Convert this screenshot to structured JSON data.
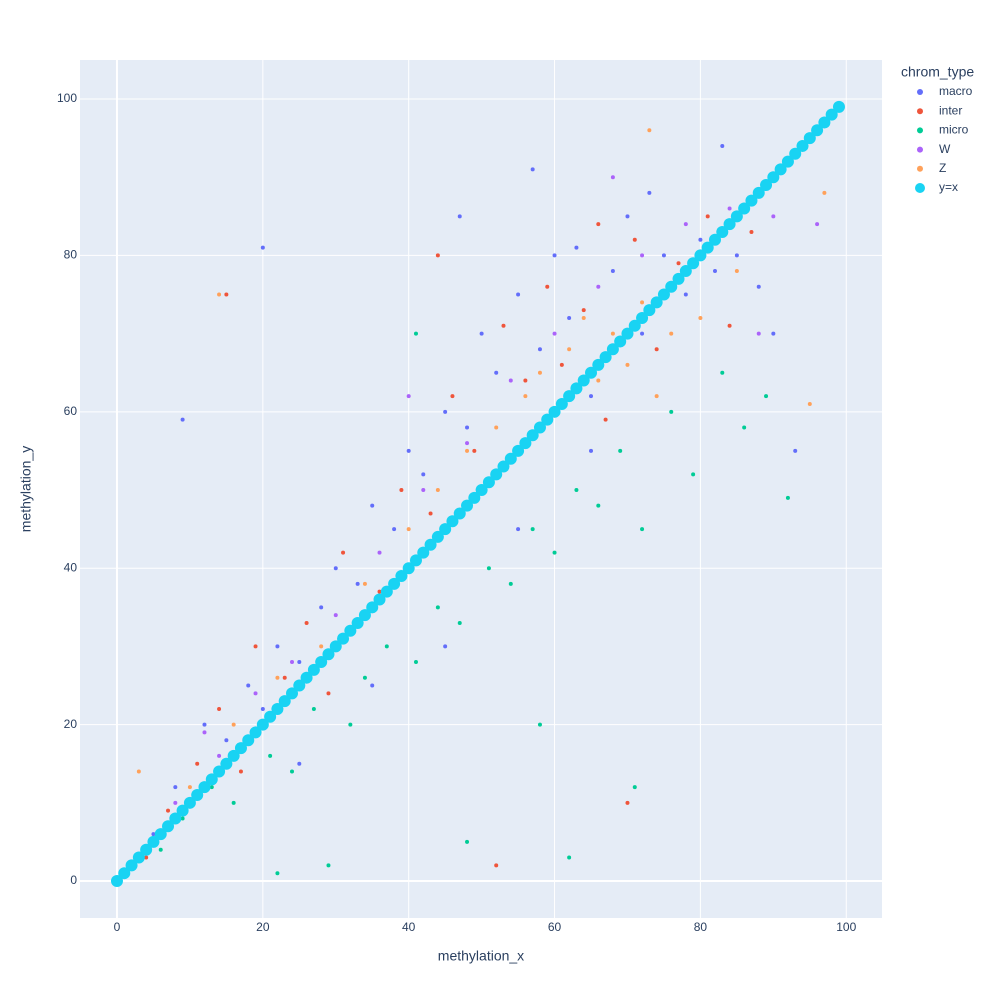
{
  "chart_data": {
    "type": "scatter",
    "x_label": "methylation_x",
    "y_label": "methylation_y",
    "legend_title": "chrom_type",
    "xlim": [
      -5.07,
      104.9
    ],
    "ylim": [
      -4.73,
      104.99
    ],
    "xticks": [
      0,
      20,
      40,
      60,
      80,
      100
    ],
    "yticks": [
      0,
      20,
      40,
      60,
      80,
      100
    ],
    "grid": true,
    "legend": "right",
    "series": [
      {
        "name": "macro",
        "color": "#636efa",
        "size": 2,
        "x": [
          5,
          8,
          10,
          12,
          15,
          18,
          20,
          22,
          25,
          28,
          30,
          33,
          35,
          38,
          40,
          42,
          45,
          48,
          50,
          52,
          55,
          58,
          60,
          62,
          65,
          68,
          70,
          72,
          75,
          78,
          80,
          82,
          85,
          88,
          90,
          45,
          55,
          65,
          35,
          25,
          20,
          9,
          47,
          57,
          63,
          73,
          83,
          93
        ],
        "values": [
          6,
          12,
          10,
          20,
          18,
          25,
          22,
          30,
          28,
          35,
          40,
          38,
          48,
          45,
          55,
          52,
          60,
          58,
          70,
          65,
          75,
          68,
          80,
          72,
          62,
          78,
          85,
          70,
          80,
          75,
          82,
          78,
          80,
          76,
          70,
          30,
          45,
          55,
          25,
          15,
          81,
          59,
          85,
          91,
          81,
          88,
          94,
          55
        ]
      },
      {
        "name": "inter",
        "color": "#EF553B",
        "size": 2,
        "x": [
          4,
          7,
          11,
          14,
          17,
          19,
          23,
          26,
          29,
          31,
          36,
          39,
          43,
          46,
          49,
          53,
          56,
          59,
          61,
          64,
          67,
          71,
          74,
          77,
          81,
          84,
          87,
          15,
          52,
          70,
          66,
          44
        ],
        "values": [
          3,
          9,
          15,
          22,
          14,
          30,
          26,
          33,
          24,
          42,
          37,
          50,
          47,
          62,
          55,
          71,
          64,
          76,
          66,
          73,
          59,
          82,
          68,
          79,
          85,
          71,
          83,
          75,
          2,
          10,
          84,
          80
        ]
      },
      {
        "name": "micro",
        "color": "#00cc96",
        "size": 2,
        "x": [
          6,
          9,
          13,
          16,
          21,
          24,
          27,
          32,
          34,
          37,
          41,
          44,
          47,
          51,
          54,
          57,
          60,
          63,
          66,
          69,
          72,
          76,
          79,
          83,
          86,
          89,
          22,
          29,
          48,
          62,
          71,
          58,
          41,
          92
        ],
        "values": [
          4,
          8,
          12,
          10,
          16,
          14,
          22,
          20,
          26,
          30,
          28,
          35,
          33,
          40,
          38,
          45,
          42,
          50,
          48,
          55,
          45,
          60,
          52,
          65,
          58,
          62,
          1,
          2,
          5,
          3,
          12,
          20,
          70,
          49
        ]
      },
      {
        "name": "W",
        "color": "#ab63fa",
        "size": 2,
        "x": [
          8,
          14,
          19,
          24,
          30,
          36,
          42,
          48,
          54,
          60,
          66,
          72,
          78,
          84,
          90,
          96,
          12,
          40,
          68,
          88
        ],
        "values": [
          10,
          16,
          24,
          28,
          34,
          42,
          50,
          56,
          64,
          70,
          76,
          80,
          84,
          86,
          85,
          84,
          19,
          62,
          90,
          70
        ]
      },
      {
        "name": "Z",
        "color": "#FFA15A",
        "size": 2,
        "x": [
          3,
          10,
          16,
          22,
          28,
          34,
          40,
          44,
          48,
          52,
          56,
          58,
          60,
          62,
          64,
          66,
          68,
          70,
          72,
          74,
          76,
          80,
          85,
          95,
          73,
          14,
          97
        ],
        "values": [
          14,
          12,
          20,
          26,
          30,
          38,
          45,
          50,
          55,
          58,
          62,
          65,
          60,
          68,
          72,
          64,
          70,
          66,
          74,
          62,
          70,
          72,
          78,
          61,
          96,
          75,
          88
        ]
      },
      {
        "name": "y=x",
        "color": "#19d3f3",
        "size": 6,
        "x": [
          0,
          1,
          2,
          3,
          4,
          5,
          6,
          7,
          8,
          9,
          10,
          11,
          12,
          13,
          14,
          15,
          16,
          17,
          18,
          19,
          20,
          21,
          22,
          23,
          24,
          25,
          26,
          27,
          28,
          29,
          30,
          31,
          32,
          33,
          34,
          35,
          36,
          37,
          38,
          39,
          40,
          41,
          42,
          43,
          44,
          45,
          46,
          47,
          48,
          49,
          50,
          51,
          52,
          53,
          54,
          55,
          56,
          57,
          58,
          59,
          60,
          61,
          62,
          63,
          64,
          65,
          66,
          67,
          68,
          69,
          70,
          71,
          72,
          73,
          74,
          75,
          76,
          77,
          78,
          79,
          80,
          81,
          82,
          83,
          84,
          85,
          86,
          87,
          88,
          89,
          90,
          91,
          92,
          93,
          94,
          95,
          96,
          97,
          98,
          99
        ],
        "values": [
          0,
          1,
          2,
          3,
          4,
          5,
          6,
          7,
          8,
          9,
          10,
          11,
          12,
          13,
          14,
          15,
          16,
          17,
          18,
          19,
          20,
          21,
          22,
          23,
          24,
          25,
          26,
          27,
          28,
          29,
          30,
          31,
          32,
          33,
          34,
          35,
          36,
          37,
          38,
          39,
          40,
          41,
          42,
          43,
          44,
          45,
          46,
          47,
          48,
          49,
          50,
          51,
          52,
          53,
          54,
          55,
          56,
          57,
          58,
          59,
          60,
          61,
          62,
          63,
          64,
          65,
          66,
          67,
          68,
          69,
          70,
          71,
          72,
          73,
          74,
          75,
          76,
          77,
          78,
          79,
          80,
          81,
          82,
          83,
          84,
          85,
          86,
          87,
          88,
          89,
          90,
          91,
          92,
          93,
          94,
          95,
          96,
          97,
          98,
          99
        ]
      }
    ]
  }
}
